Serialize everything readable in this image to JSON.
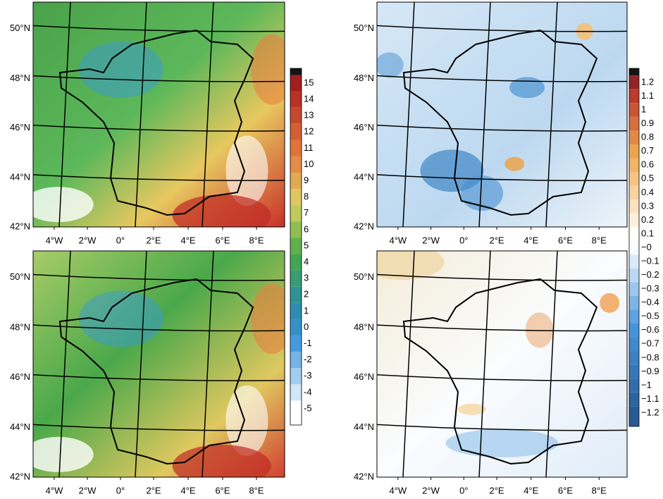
{
  "panels": [
    {
      "lat_labels": [
        "50°N",
        "48°N",
        "46°N",
        "44°N",
        "42°N"
      ],
      "lon_labels": [
        "4°W",
        "2°W",
        "0°",
        "2°E",
        "4°E",
        "6°E",
        "8°E"
      ]
    },
    {
      "lat_labels": [
        "50°N",
        "48°N",
        "46°N",
        "44°N",
        "42°N"
      ],
      "lon_labels": [
        "4°W",
        "2°W",
        "0°",
        "2°E",
        "4°E",
        "6°E",
        "8°E"
      ]
    },
    {
      "lat_labels": [
        "50°N",
        "48°N",
        "46°N",
        "44°N",
        "42°N"
      ],
      "lon_labels": [
        "4°W",
        "2°W",
        "0°",
        "2°E",
        "4°E",
        "6°E",
        "8°E"
      ]
    },
    {
      "lat_labels": [
        "50°N",
        "48°N",
        "46°N",
        "44°N",
        "42°N"
      ],
      "lon_labels": [
        "4°W",
        "2°W",
        "0°",
        "2°E",
        "4°E",
        "6°E",
        "8°E"
      ]
    }
  ],
  "colorbar_left": {
    "labels": [
      "15",
      "14",
      "13",
      "12",
      "11",
      "10",
      "9",
      "8",
      "7",
      "6",
      "5",
      "4",
      "3",
      "2",
      "1",
      "0",
      "-1",
      "-2",
      "-3",
      "-4",
      "-5"
    ]
  },
  "colorbar_right": {
    "labels": [
      "1.2",
      "1.1",
      "1",
      "0.9",
      "0.8",
      "0.7",
      "0.6",
      "0.5",
      "0.4",
      "0.3",
      "0.2",
      "0.1",
      "−0",
      "−0.1",
      "−0.2",
      "−0.3",
      "−0.4",
      "−0.5",
      "−0.6",
      "−0.7",
      "−0.8",
      "−0.9",
      "−1",
      "−1.1",
      "−1.2"
    ]
  }
}
